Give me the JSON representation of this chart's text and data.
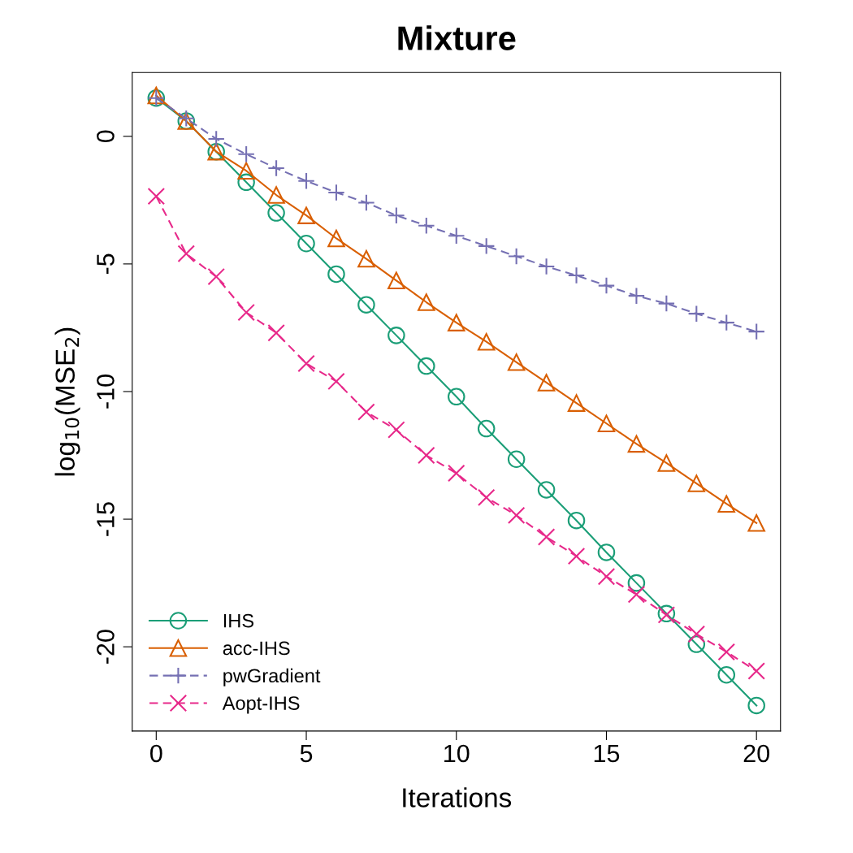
{
  "chart_data": {
    "type": "line",
    "title": "Mixture",
    "xlabel": "Iterations",
    "ylabel": "log$_{10}$(MSE$_{2}$)",
    "x": [
      0,
      1,
      2,
      3,
      4,
      5,
      6,
      7,
      8,
      9,
      10,
      11,
      12,
      13,
      14,
      15,
      16,
      17,
      18,
      19,
      20
    ],
    "series": [
      {
        "name": "IHS",
        "color": "#1b9e77",
        "marker": "circle",
        "line_style": "solid",
        "values": [
          1.5,
          0.6,
          -0.6,
          -1.8,
          -3.0,
          -4.2,
          -5.4,
          -6.6,
          -7.8,
          -9.0,
          -10.2,
          -11.45,
          -12.65,
          -13.85,
          -15.05,
          -16.3,
          -17.5,
          -18.7,
          -19.9,
          -21.1,
          -22.3
        ]
      },
      {
        "name": "acc-IHS",
        "color": "#d95f02",
        "marker": "triangle",
        "line_style": "solid",
        "values": [
          1.6,
          0.6,
          -0.6,
          -1.35,
          -2.3,
          -3.1,
          -4.0,
          -4.8,
          -5.65,
          -6.5,
          -7.3,
          -8.05,
          -8.85,
          -9.65,
          -10.45,
          -11.25,
          -12.05,
          -12.8,
          -13.6,
          -14.4,
          -15.15
        ]
      },
      {
        "name": "pwGradient",
        "color": "#7570b3",
        "marker": "plus",
        "line_style": "dashed",
        "values": [
          1.5,
          0.7,
          -0.1,
          -0.7,
          -1.25,
          -1.75,
          -2.2,
          -2.6,
          -3.1,
          -3.5,
          -3.9,
          -4.3,
          -4.7,
          -5.1,
          -5.45,
          -5.85,
          -6.25,
          -6.55,
          -6.95,
          -7.3,
          -7.65
        ]
      },
      {
        "name": "Aopt-IHS",
        "color": "#e7298a",
        "marker": "cross",
        "line_style": "dashed",
        "values": [
          -2.35,
          -4.6,
          -5.5,
          -6.9,
          -7.7,
          -8.9,
          -9.6,
          -10.8,
          -11.5,
          -12.5,
          -13.2,
          -14.15,
          -14.85,
          -15.7,
          -16.45,
          -17.25,
          -17.95,
          -18.75,
          -19.5,
          -20.2,
          -20.95
        ]
      }
    ],
    "xlim": [
      -0.8,
      20.8
    ],
    "ylim": [
      -23.3,
      2.5
    ],
    "xticks": [
      0,
      5,
      10,
      15,
      20
    ],
    "yticks": [
      -20,
      -15,
      -10,
      -5,
      0
    ],
    "grid": false,
    "legend": "bottom left"
  }
}
